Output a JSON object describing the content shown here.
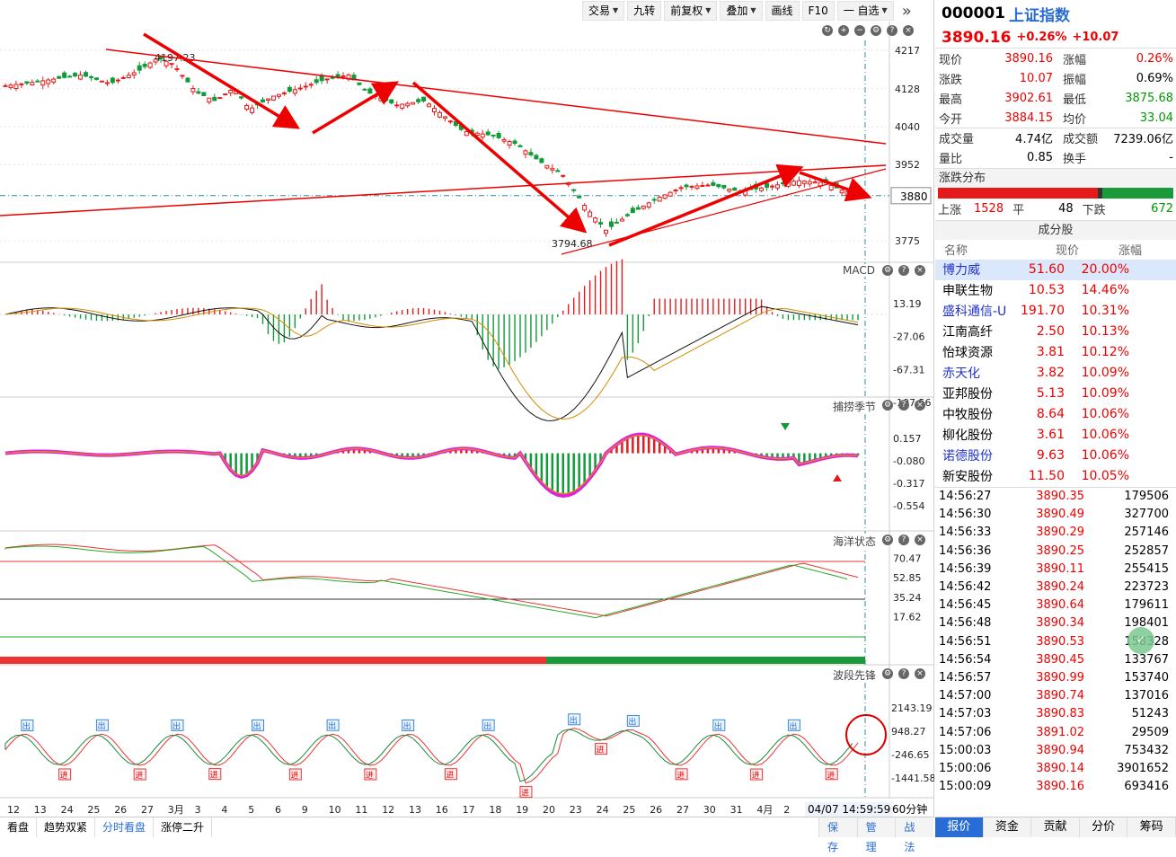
{
  "toolbar": {
    "items": [
      {
        "label": "交易",
        "dropdown": true
      },
      {
        "label": "九转",
        "dropdown": false
      },
      {
        "label": "前复权",
        "dropdown": true
      },
      {
        "label": "叠加",
        "dropdown": true
      },
      {
        "label": "画线",
        "dropdown": false
      },
      {
        "label": "F10",
        "dropdown": false
      },
      {
        "label": "一 自选",
        "dropdown": true
      }
    ],
    "expand_icon": "double-chevron-right-icon"
  },
  "main_chart": {
    "y_ticks": [
      "4217",
      "4128",
      "4040",
      "3952",
      "3880",
      "3775"
    ],
    "current_price_label": "3880",
    "high_annotation": "4197.23",
    "low_annotation": "3794.68",
    "ylim": [
      3740,
      4240
    ]
  },
  "macd": {
    "label": "MACD",
    "y_ticks": [
      "13.19",
      "-27.06",
      "-67.31",
      "-107.56"
    ]
  },
  "season": {
    "label": "捕捞季节",
    "y_ticks": [
      "0.157",
      "-0.080",
      "-0.317",
      "-0.554"
    ]
  },
  "ocean": {
    "label": "海洋状态",
    "y_ticks": [
      "70.47",
      "52.85",
      "35.24",
      "17.62"
    ]
  },
  "wave": {
    "label": "波段先锋",
    "y_ticks": [
      "2143.19",
      "948.27",
      "-246.65",
      "-1441.58"
    ],
    "out_label": "出",
    "in_label": "进"
  },
  "x_axis": {
    "labels": [
      "12",
      "13",
      "24",
      "25",
      "26",
      "27",
      "3月",
      "3",
      "4",
      "5",
      "6",
      "9",
      "10",
      "11",
      "12",
      "13",
      "16",
      "17",
      "18",
      "19",
      "20",
      "23",
      "24",
      "25",
      "26",
      "27",
      "30",
      "31",
      "4月",
      "2"
    ],
    "cursor_time": "04/07 14:59:59",
    "period": "60分钟"
  },
  "bottom_tabs": [
    "看盘",
    "趋势双紧",
    "分时看盘",
    "涨停二升"
  ],
  "bottom_buttons": [
    "保存",
    "管理",
    "战法"
  ],
  "quote": {
    "code": "000001",
    "name": "上证指数",
    "price": "3890.16",
    "pct": "+0.26%",
    "chg": "+10.07",
    "rows": [
      {
        "l1": "现价",
        "v1": "3890.16",
        "c1": "red",
        "l2": "涨幅",
        "v2": "0.26%",
        "c2": "red"
      },
      {
        "l1": "涨跌",
        "v1": "10.07",
        "c1": "red",
        "l2": "振幅",
        "v2": "0.69%",
        "c2": ""
      },
      {
        "l1": "最高",
        "v1": "3902.61",
        "c1": "red",
        "l2": "最低",
        "v2": "3875.68",
        "c2": "green"
      },
      {
        "l1": "今开",
        "v1": "3884.15",
        "c1": "red",
        "l2": "均价",
        "v2": "33.04",
        "c2": "green"
      }
    ],
    "rows2": [
      {
        "l1": "成交量",
        "v1": "4.74亿",
        "l2": "成交额",
        "v2": "7239.06亿"
      },
      {
        "l1": "量比",
        "v1": "0.85",
        "l2": "换手",
        "v2": "-"
      }
    ]
  },
  "distribution": {
    "title": "涨跌分布",
    "up_label": "上涨",
    "up": "1528",
    "flat_label": "平",
    "flat": "48",
    "down_label": "下跌",
    "down": "672",
    "up_frac": 0.68,
    "flat_frac": 0.02,
    "down_frac": 0.3
  },
  "constituents": {
    "title": "成分股",
    "headers": [
      "名称",
      "现价",
      "涨幅"
    ],
    "rows": [
      {
        "name": "博力威",
        "price": "51.60",
        "pct": "20.00%",
        "blue": true,
        "sel": true
      },
      {
        "name": "申联生物",
        "price": "10.53",
        "pct": "14.46%",
        "blue": false,
        "sel": false
      },
      {
        "name": "盛科通信-U",
        "price": "191.70",
        "pct": "10.31%",
        "blue": true,
        "sel": false
      },
      {
        "name": "江南高纤",
        "price": "2.50",
        "pct": "10.13%",
        "blue": false,
        "sel": false
      },
      {
        "name": "怡球资源",
        "price": "3.81",
        "pct": "10.12%",
        "blue": false,
        "sel": false
      },
      {
        "name": "赤天化",
        "price": "3.82",
        "pct": "10.09%",
        "blue": true,
        "sel": false
      },
      {
        "name": "亚邦股份",
        "price": "5.13",
        "pct": "10.09%",
        "blue": false,
        "sel": false
      },
      {
        "name": "中牧股份",
        "price": "8.64",
        "pct": "10.06%",
        "blue": false,
        "sel": false
      },
      {
        "name": "柳化股份",
        "price": "3.61",
        "pct": "10.06%",
        "blue": false,
        "sel": false
      },
      {
        "name": "诺德股份",
        "price": "9.63",
        "pct": "10.06%",
        "blue": true,
        "sel": false
      },
      {
        "name": "新安股份",
        "price": "11.50",
        "pct": "10.05%",
        "blue": false,
        "sel": false
      }
    ]
  },
  "ticks": [
    {
      "t": "14:56:27",
      "p": "3890.35",
      "v": "179506"
    },
    {
      "t": "14:56:30",
      "p": "3890.49",
      "v": "327700"
    },
    {
      "t": "14:56:33",
      "p": "3890.29",
      "v": "257146"
    },
    {
      "t": "14:56:36",
      "p": "3890.25",
      "v": "252857"
    },
    {
      "t": "14:56:39",
      "p": "3890.11",
      "v": "255415"
    },
    {
      "t": "14:56:42",
      "p": "3890.24",
      "v": "223723"
    },
    {
      "t": "14:56:45",
      "p": "3890.64",
      "v": "179611"
    },
    {
      "t": "14:56:48",
      "p": "3890.34",
      "v": "198401"
    },
    {
      "t": "14:56:51",
      "p": "3890.53",
      "v": "158328"
    },
    {
      "t": "14:56:54",
      "p": "3890.45",
      "v": "133767"
    },
    {
      "t": "14:56:57",
      "p": "3890.99",
      "v": "153740"
    },
    {
      "t": "14:57:00",
      "p": "3890.74",
      "v": "137016"
    },
    {
      "t": "14:57:03",
      "p": "3890.83",
      "v": "51243"
    },
    {
      "t": "14:57:06",
      "p": "3891.02",
      "v": "29509"
    },
    {
      "t": "15:00:03",
      "p": "3890.94",
      "v": "753432"
    },
    {
      "t": "15:00:06",
      "p": "3890.14",
      "v": "3901652"
    },
    {
      "t": "15:00:09",
      "p": "3890.16",
      "v": "693416"
    }
  ],
  "right_tabs": [
    "报价",
    "资金",
    "贡献",
    "分价",
    "筹码"
  ]
}
